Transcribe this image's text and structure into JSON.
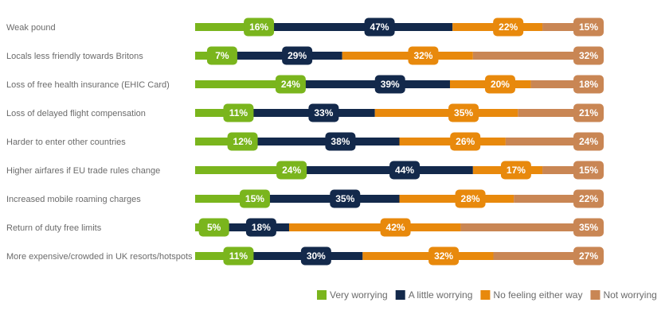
{
  "chart_data": {
    "type": "bar",
    "stacked": true,
    "orientation": "horizontal",
    "categories": [
      "Weak pound",
      "Locals less friendly towards Britons",
      "Loss of free health insurance (EHIC Card)",
      "Loss of delayed flight compensation",
      "Harder to enter other countries",
      "Higher airfares if EU trade rules change",
      "Increased mobile roaming charges",
      "Return of duty free limits",
      "More expensive/crowded in UK resorts/hotspots"
    ],
    "series": [
      {
        "name": "Very worrying",
        "color": "#7ab51d",
        "values": [
          16,
          7,
          24,
          11,
          12,
          24,
          15,
          5,
          11
        ]
      },
      {
        "name": "A little worrying",
        "color": "#13294b",
        "values": [
          47,
          29,
          39,
          33,
          38,
          44,
          35,
          18,
          30
        ]
      },
      {
        "name": "No feeling either way",
        "color": "#e8890c",
        "values": [
          22,
          32,
          20,
          35,
          26,
          17,
          28,
          42,
          32
        ]
      },
      {
        "name": "Not worrying",
        "color": "#c98654",
        "values": [
          15,
          32,
          18,
          21,
          24,
          15,
          22,
          35,
          27
        ]
      }
    ],
    "value_suffix": "%",
    "legend_position": "bottom-right",
    "grid": false
  }
}
